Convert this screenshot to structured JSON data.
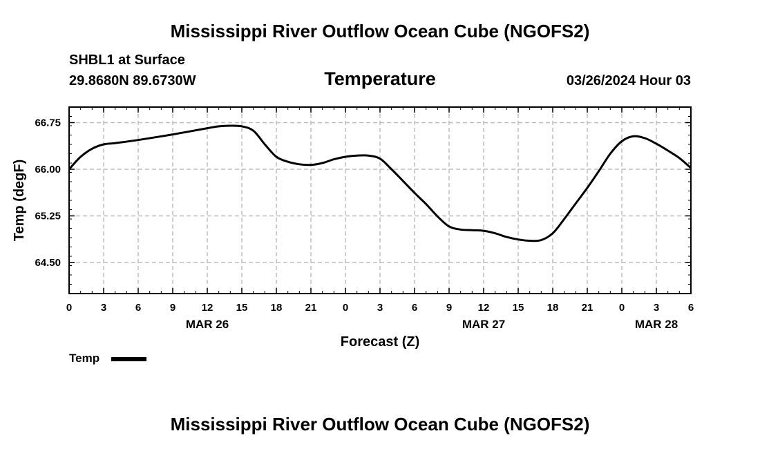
{
  "header": {
    "title": "Mississippi River Outflow Ocean Cube (NGOFS2)",
    "station": "SHBL1 at Surface",
    "coordinates": "29.8680N  89.6730W",
    "chart_title": "Temperature",
    "datetime": "03/26/2024 Hour 03"
  },
  "footer": {
    "title": "Mississippi River Outflow Ocean Cube (NGOFS2)"
  },
  "legend": {
    "label": "Temp",
    "color": "#000000"
  },
  "chart_data": {
    "type": "line",
    "title": "Temperature",
    "xlabel": "Forecast (Z)",
    "ylabel": "Temp (degF)",
    "xlim": [
      0,
      54
    ],
    "ylim": [
      64.0,
      67.0
    ],
    "yticks": [
      64.5,
      65.25,
      66.0,
      66.75
    ],
    "ytick_labels": [
      "64.50",
      "65.25",
      "66.00",
      "66.75"
    ],
    "xticks": [
      0,
      3,
      6,
      9,
      12,
      15,
      18,
      21,
      24,
      27,
      30,
      33,
      36,
      39,
      42,
      45,
      48,
      51,
      54
    ],
    "xtick_labels": [
      "0",
      "3",
      "6",
      "9",
      "12",
      "15",
      "18",
      "21",
      "0",
      "3",
      "6",
      "9",
      "12",
      "15",
      "18",
      "21",
      "0",
      "3",
      "6"
    ],
    "date_labels": [
      {
        "x": 12,
        "label": "MAR 26"
      },
      {
        "x": 36,
        "label": "MAR 27"
      },
      {
        "x": 51,
        "label": "MAR 28"
      }
    ],
    "grid": true,
    "series": [
      {
        "name": "Temp",
        "color": "#000000",
        "x": [
          0,
          1,
          2,
          3,
          4,
          6,
          9,
          12,
          13,
          14,
          15,
          16,
          17,
          18,
          19,
          20,
          21,
          22,
          23,
          24,
          25,
          26,
          27,
          28,
          30,
          31,
          32,
          33,
          34,
          35,
          36,
          37,
          38,
          39,
          40,
          41,
          42,
          43,
          44,
          45,
          46,
          47,
          48,
          49,
          50,
          51,
          52,
          53,
          54
        ],
        "y": [
          66.0,
          66.2,
          66.33,
          66.4,
          66.42,
          66.47,
          66.56,
          66.66,
          66.69,
          66.7,
          66.69,
          66.62,
          66.4,
          66.2,
          66.12,
          66.08,
          66.07,
          66.1,
          66.16,
          66.2,
          66.22,
          66.22,
          66.17,
          66.0,
          65.62,
          65.44,
          65.24,
          65.08,
          65.03,
          65.02,
          65.01,
          64.97,
          64.91,
          64.87,
          64.85,
          64.86,
          64.97,
          65.2,
          65.45,
          65.7,
          65.97,
          66.25,
          66.45,
          66.53,
          66.5,
          66.41,
          66.3,
          66.18,
          66.02
        ]
      }
    ]
  }
}
